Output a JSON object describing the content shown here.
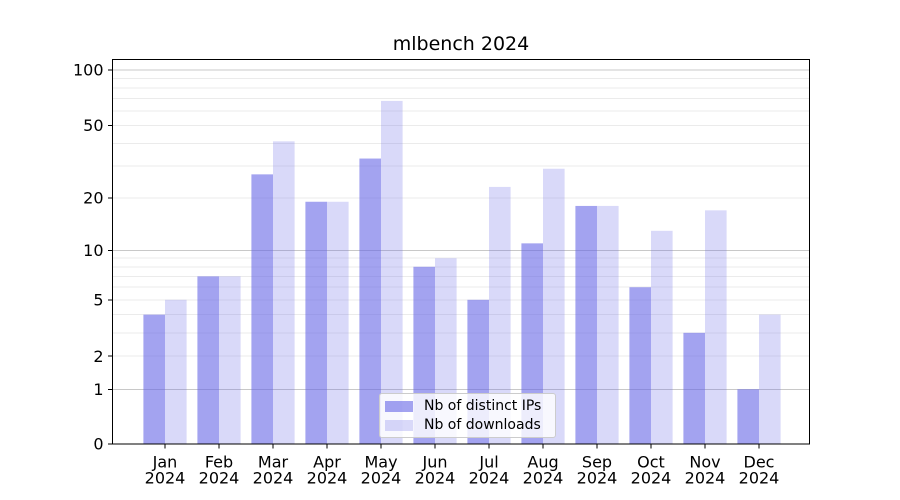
{
  "title": "mlbench 2024",
  "background": "#ffffff",
  "chart_data": {
    "type": "bar",
    "title": "mlbench 2024",
    "categories": [
      "Jan",
      "Feb",
      "Mar",
      "Apr",
      "May",
      "Jun",
      "Jul",
      "Aug",
      "Sep",
      "Oct",
      "Nov",
      "Dec"
    ],
    "category_year": "2024",
    "series": [
      {
        "name": "Nb of distinct IPs",
        "color": "rgba(102,102,230,0.6)",
        "values": [
          4,
          7,
          27,
          19,
          33,
          8,
          5,
          11,
          18,
          6,
          3,
          1
        ]
      },
      {
        "name": "Nb of downloads",
        "color": "rgba(102,102,230,0.25)",
        "values": [
          5,
          7,
          41,
          19,
          68,
          9,
          23,
          29,
          18,
          13,
          17,
          4
        ]
      }
    ],
    "yscale": "log1p",
    "ylabel": "",
    "xlabel": "",
    "y_ticks": [
      0,
      1,
      2,
      5,
      10,
      20,
      50,
      100
    ],
    "y_major_gridlines": [
      1,
      10,
      100
    ],
    "y_minor_gridlines": [
      2,
      3,
      4,
      5,
      6,
      7,
      8,
      9,
      20,
      30,
      40,
      50,
      60,
      70,
      80,
      90
    ],
    "ylim": [
      0,
      114
    ],
    "grid": true,
    "legend_position": "lower center"
  },
  "colors": {
    "axis": "#000000",
    "major_grid": "#c8c8c8",
    "minor_grid": "#ebebeb",
    "legend_border": "#cccccc",
    "text": "#000000"
  }
}
